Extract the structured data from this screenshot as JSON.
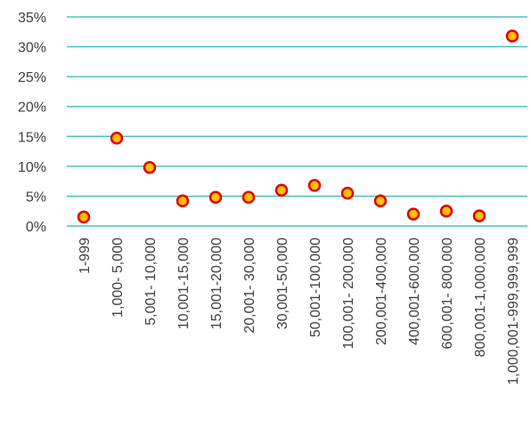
{
  "chart_data": {
    "type": "scatter",
    "title": "",
    "xlabel": "",
    "ylabel": "",
    "categories": [
      "1-999",
      "1,000- 5,000",
      "5,001- 10,000",
      "10,001-15,000",
      "15,001-20,000",
      "20,001- 30,000",
      "30,001-50,000",
      "50,001-100,000",
      "100,001- 200,000",
      "200,001-400,000",
      "400,001-600,000",
      "600,001- 800,000",
      "800,001-1,000,000",
      "1,000,001-999,999,999"
    ],
    "values": [
      1.5,
      14.7,
      9.8,
      4.2,
      4.8,
      4.8,
      6.0,
      6.8,
      5.5,
      4.2,
      2.0,
      2.5,
      1.7,
      31.8
    ],
    "ylim": [
      0,
      35
    ],
    "yticks": [
      0,
      5,
      10,
      15,
      20,
      25,
      30,
      35
    ],
    "ytick_labels": [
      "0%",
      "5%",
      "10%",
      "15%",
      "20%",
      "25%",
      "30%",
      "35%"
    ],
    "grid": true,
    "legend": "none",
    "colors": {
      "marker_fill": "#ffc000",
      "marker_edge": "#e00000",
      "grid": "#2ab5b5",
      "text": "#404040"
    }
  }
}
